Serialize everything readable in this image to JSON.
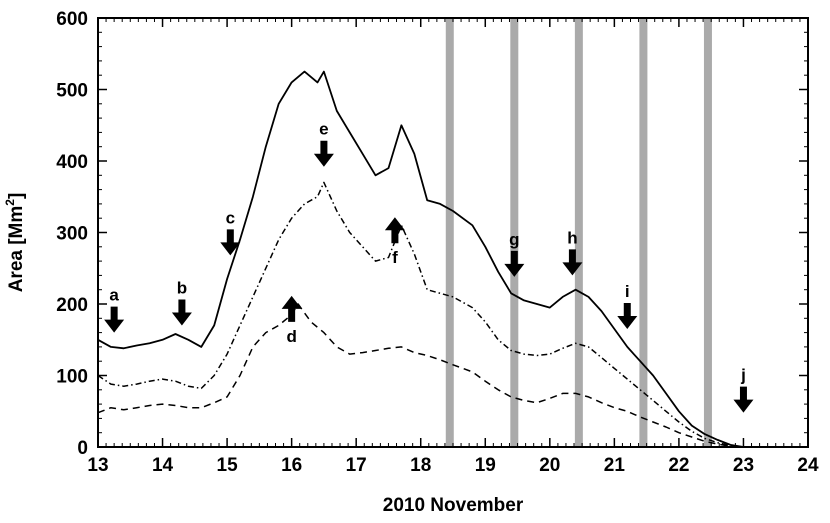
{
  "chart_data": {
    "type": "line",
    "xlabel": "2010 November",
    "ylabel": "Area  [Mm",
    "ylabel_sup": "2",
    "ylabel_close": "]",
    "xlim": [
      13,
      24
    ],
    "ylim": [
      0,
      600
    ],
    "x_ticks": [
      13,
      14,
      15,
      16,
      17,
      18,
      19,
      20,
      21,
      22,
      23,
      24
    ],
    "y_ticks": [
      0,
      100,
      200,
      300,
      400,
      500,
      600
    ],
    "grid": false,
    "legend": "none",
    "series": [
      {
        "style": "solid",
        "x": [
          13.0,
          13.2,
          13.4,
          13.6,
          13.8,
          14.0,
          14.2,
          14.4,
          14.6,
          14.8,
          15.0,
          15.2,
          15.4,
          15.6,
          15.8,
          16.0,
          16.2,
          16.4,
          16.5,
          16.7,
          16.9,
          17.1,
          17.3,
          17.5,
          17.7,
          17.9,
          18.1,
          18.3,
          18.5,
          18.8,
          19.0,
          19.2,
          19.4,
          19.6,
          19.8,
          20.0,
          20.2,
          20.4,
          20.6,
          20.8,
          21.0,
          21.2,
          21.4,
          21.6,
          21.8,
          22.0,
          22.2,
          22.4,
          22.6,
          22.8,
          23.0
        ],
        "y": [
          150,
          140,
          138,
          142,
          145,
          150,
          158,
          150,
          140,
          170,
          235,
          290,
          350,
          420,
          480,
          510,
          525,
          510,
          525,
          470,
          440,
          410,
          380,
          390,
          450,
          410,
          345,
          340,
          330,
          310,
          280,
          245,
          215,
          205,
          200,
          195,
          210,
          220,
          210,
          190,
          165,
          140,
          120,
          100,
          75,
          50,
          30,
          18,
          10,
          3,
          0
        ]
      },
      {
        "style": "dash-dot",
        "x": [
          13.0,
          13.2,
          13.4,
          13.6,
          13.8,
          14.0,
          14.2,
          14.4,
          14.6,
          14.8,
          15.0,
          15.2,
          15.4,
          15.6,
          15.8,
          16.0,
          16.2,
          16.4,
          16.5,
          16.7,
          16.9,
          17.1,
          17.3,
          17.5,
          17.7,
          17.9,
          18.1,
          18.3,
          18.5,
          18.8,
          19.0,
          19.2,
          19.4,
          19.6,
          19.8,
          20.0,
          20.2,
          20.4,
          20.6,
          20.8,
          21.0,
          21.2,
          21.4,
          21.6,
          21.8,
          22.0,
          22.2,
          22.4,
          22.6,
          22.8,
          23.0
        ],
        "y": [
          100,
          88,
          85,
          88,
          92,
          95,
          92,
          85,
          82,
          100,
          130,
          170,
          210,
          250,
          290,
          320,
          340,
          350,
          370,
          330,
          300,
          280,
          260,
          265,
          310,
          270,
          220,
          215,
          210,
          195,
          175,
          150,
          135,
          130,
          128,
          130,
          138,
          145,
          140,
          125,
          110,
          95,
          80,
          65,
          50,
          35,
          22,
          12,
          6,
          2,
          0
        ]
      },
      {
        "style": "dashed",
        "x": [
          13.0,
          13.2,
          13.4,
          13.6,
          13.8,
          14.0,
          14.2,
          14.4,
          14.6,
          14.8,
          15.0,
          15.2,
          15.4,
          15.6,
          15.8,
          16.0,
          16.1,
          16.3,
          16.5,
          16.7,
          16.9,
          17.1,
          17.3,
          17.5,
          17.7,
          17.9,
          18.1,
          18.3,
          18.5,
          18.8,
          19.0,
          19.2,
          19.4,
          19.6,
          19.8,
          20.0,
          20.2,
          20.4,
          20.6,
          20.8,
          21.0,
          21.2,
          21.4,
          21.6,
          21.8,
          22.0,
          22.2,
          22.4,
          22.6,
          22.8,
          23.0
        ],
        "y": [
          48,
          55,
          52,
          55,
          58,
          60,
          58,
          55,
          55,
          62,
          70,
          100,
          140,
          160,
          170,
          185,
          200,
          175,
          160,
          140,
          130,
          132,
          135,
          138,
          140,
          132,
          128,
          122,
          115,
          105,
          92,
          80,
          70,
          65,
          62,
          68,
          75,
          75,
          70,
          62,
          55,
          50,
          42,
          35,
          28,
          20,
          14,
          8,
          4,
          1,
          0
        ]
      }
    ],
    "vertical_bands": [
      18.45,
      19.45,
      20.45,
      21.45,
      22.45
    ],
    "band_color": "#aaaaaa",
    "markers": [
      {
        "label": "a",
        "x": 13.25,
        "y": 160,
        "direction": "down"
      },
      {
        "label": "b",
        "x": 14.3,
        "y": 170,
        "direction": "down"
      },
      {
        "label": "c",
        "x": 15.05,
        "y": 268,
        "direction": "down"
      },
      {
        "label": "d",
        "x": 16.0,
        "y": 175,
        "direction": "up"
      },
      {
        "label": "e",
        "x": 16.5,
        "y": 392,
        "direction": "down"
      },
      {
        "label": "f",
        "x": 17.6,
        "y": 285,
        "direction": "up"
      },
      {
        "label": "g",
        "x": 19.45,
        "y": 238,
        "direction": "down"
      },
      {
        "label": "h",
        "x": 20.35,
        "y": 240,
        "direction": "down"
      },
      {
        "label": "i",
        "x": 21.2,
        "y": 165,
        "direction": "down"
      },
      {
        "label": "j",
        "x": 23.0,
        "y": 48,
        "direction": "down"
      }
    ]
  }
}
